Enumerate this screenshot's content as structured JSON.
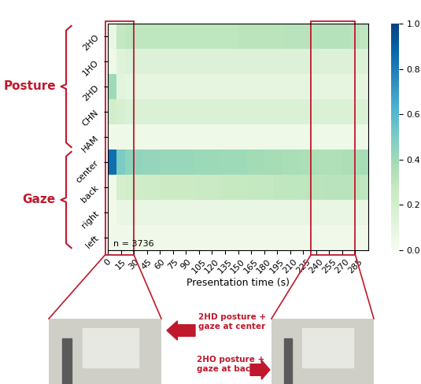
{
  "chart_data": {
    "type": "heatmap",
    "x_label": "Presentation time (s)",
    "x_edges": [
      0,
      10,
      20,
      30,
      40,
      50,
      60,
      70,
      80,
      90,
      100,
      110,
      120,
      130,
      140,
      150,
      160,
      170,
      180,
      190,
      200,
      210,
      220,
      230,
      240,
      250,
      260,
      270,
      280,
      290,
      300
    ],
    "xlim": [
      0,
      300
    ],
    "xticks": [
      0,
      15,
      30,
      45,
      60,
      75,
      90,
      105,
      120,
      135,
      150,
      165,
      180,
      195,
      210,
      225,
      240,
      255,
      270,
      285
    ],
    "rows": [
      "2HO",
      "1HO",
      "2HD",
      "CHN",
      "HAM",
      "center",
      "back",
      "right",
      "left"
    ],
    "groups": [
      {
        "label": "Posture",
        "first_row": 0,
        "last_row": 4
      },
      {
        "label": "Gaze",
        "first_row": 5,
        "last_row": 8
      }
    ],
    "cells": [
      [
        0.08,
        0.28,
        0.3,
        0.3,
        0.3,
        0.3,
        0.3,
        0.3,
        0.3,
        0.3,
        0.3,
        0.3,
        0.3,
        0.3,
        0.3,
        0.31,
        0.31,
        0.31,
        0.31,
        0.31,
        0.32,
        0.32,
        0.32,
        0.32,
        0.33,
        0.33,
        0.33,
        0.33,
        0.32,
        0.3
      ],
      [
        0.05,
        0.13,
        0.15,
        0.15,
        0.15,
        0.15,
        0.15,
        0.15,
        0.15,
        0.15,
        0.15,
        0.15,
        0.15,
        0.15,
        0.15,
        0.15,
        0.15,
        0.15,
        0.15,
        0.15,
        0.15,
        0.15,
        0.15,
        0.15,
        0.15,
        0.15,
        0.15,
        0.15,
        0.15,
        0.15
      ],
      [
        0.4,
        0.12,
        0.1,
        0.1,
        0.1,
        0.1,
        0.1,
        0.1,
        0.1,
        0.1,
        0.1,
        0.1,
        0.1,
        0.1,
        0.1,
        0.1,
        0.1,
        0.1,
        0.1,
        0.1,
        0.1,
        0.1,
        0.1,
        0.1,
        0.1,
        0.1,
        0.1,
        0.1,
        0.1,
        0.1
      ],
      [
        0.22,
        0.18,
        0.16,
        0.16,
        0.16,
        0.16,
        0.16,
        0.16,
        0.16,
        0.16,
        0.16,
        0.16,
        0.16,
        0.16,
        0.16,
        0.16,
        0.16,
        0.16,
        0.16,
        0.16,
        0.16,
        0.16,
        0.16,
        0.16,
        0.16,
        0.16,
        0.16,
        0.16,
        0.16,
        0.16
      ],
      [
        0.04,
        0.05,
        0.05,
        0.05,
        0.05,
        0.05,
        0.05,
        0.05,
        0.05,
        0.05,
        0.05,
        0.05,
        0.05,
        0.05,
        0.05,
        0.05,
        0.05,
        0.05,
        0.05,
        0.05,
        0.05,
        0.05,
        0.05,
        0.05,
        0.05,
        0.05,
        0.05,
        0.05,
        0.05,
        0.05
      ],
      [
        0.85,
        0.5,
        0.45,
        0.44,
        0.43,
        0.43,
        0.42,
        0.42,
        0.42,
        0.42,
        0.41,
        0.41,
        0.41,
        0.4,
        0.4,
        0.4,
        0.39,
        0.39,
        0.38,
        0.38,
        0.37,
        0.37,
        0.36,
        0.36,
        0.35,
        0.35,
        0.35,
        0.36,
        0.37,
        0.38
      ],
      [
        0.05,
        0.2,
        0.22,
        0.23,
        0.24,
        0.24,
        0.25,
        0.25,
        0.25,
        0.25,
        0.26,
        0.26,
        0.26,
        0.27,
        0.27,
        0.27,
        0.28,
        0.28,
        0.28,
        0.29,
        0.29,
        0.3,
        0.3,
        0.31,
        0.31,
        0.32,
        0.32,
        0.32,
        0.31,
        0.3
      ],
      [
        0.04,
        0.08,
        0.08,
        0.08,
        0.08,
        0.08,
        0.08,
        0.08,
        0.08,
        0.08,
        0.08,
        0.08,
        0.08,
        0.08,
        0.08,
        0.08,
        0.08,
        0.08,
        0.08,
        0.08,
        0.08,
        0.08,
        0.08,
        0.08,
        0.08,
        0.08,
        0.08,
        0.08,
        0.08,
        0.08
      ],
      [
        0.04,
        0.04,
        0.04,
        0.04,
        0.04,
        0.04,
        0.04,
        0.04,
        0.04,
        0.04,
        0.04,
        0.04,
        0.04,
        0.04,
        0.04,
        0.04,
        0.04,
        0.04,
        0.04,
        0.04,
        0.04,
        0.04,
        0.04,
        0.04,
        0.04,
        0.04,
        0.04,
        0.04,
        0.04,
        0.04
      ]
    ],
    "colorbar": {
      "range": [
        0,
        1
      ],
      "ticks": [
        {
          "value": 0,
          "label": "0.0"
        },
        {
          "value": 0.2,
          "label": "0.2"
        },
        {
          "value": 0.4,
          "label": "0.4"
        },
        {
          "value": 0.6,
          "label": "0.6"
        },
        {
          "value": 0.8,
          "label": "0.8"
        },
        {
          "value": 1,
          "label": "1.0"
        }
      ]
    },
    "color": "GnBu",
    "annotation": "n = 3736",
    "callouts": [
      "2HD posture +\ngaze at center",
      "2HO posture +\ngaze at back"
    ]
  }
}
